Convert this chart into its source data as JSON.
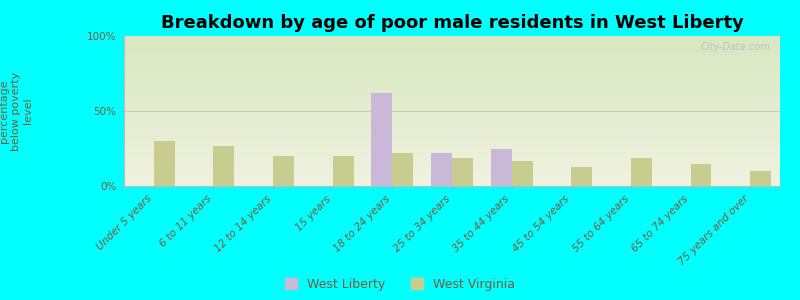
{
  "title": "Breakdown by age of poor male residents in West Liberty",
  "ylabel": "percentage\nbelow poverty\nlevel",
  "categories": [
    "Under 5 years",
    "6 to 11 years",
    "12 to 14 years",
    "15 years",
    "18 to 24 years",
    "25 to 34 years",
    "35 to 44 years",
    "45 to 54 years",
    "55 to 64 years",
    "65 to 74 years",
    "75 years and over"
  ],
  "west_liberty": [
    null,
    null,
    null,
    null,
    62,
    22,
    25,
    null,
    null,
    null,
    null
  ],
  "west_virginia": [
    30,
    27,
    20,
    20,
    22,
    19,
    17,
    13,
    19,
    15,
    10
  ],
  "west_liberty_color": "#c9b8d8",
  "west_virginia_color": "#c8cc8f",
  "background_color": "#00ffff",
  "plot_bg_top": "#d8e8c0",
  "plot_bg_bottom": "#f0f2e0",
  "ylim": [
    0,
    100
  ],
  "yticks": [
    0,
    50,
    100
  ],
  "ytick_labels": [
    "0%",
    "50%",
    "100%"
  ],
  "bar_width": 0.35,
  "title_fontsize": 13,
  "axis_label_fontsize": 8,
  "tick_fontsize": 7.5,
  "legend_fontsize": 9,
  "text_color": "#7a5a3a",
  "watermark": "City-Data.com"
}
